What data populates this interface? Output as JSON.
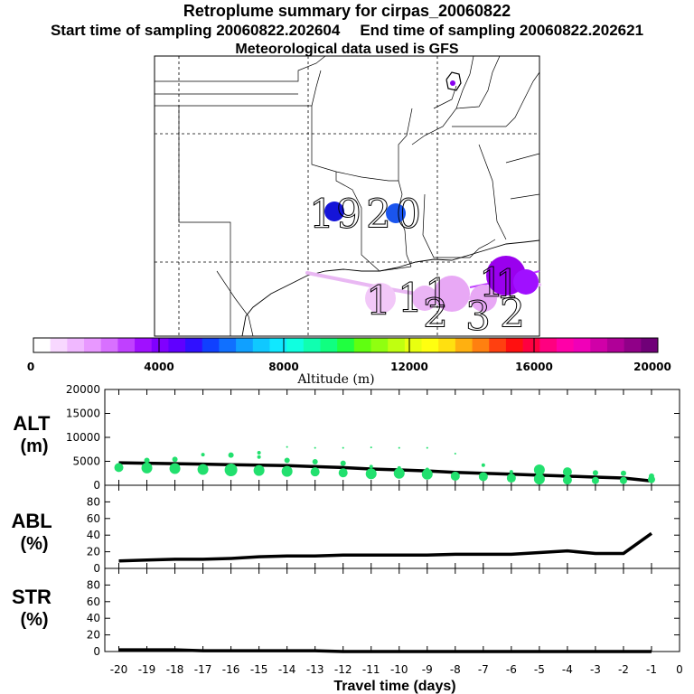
{
  "header": {
    "title": "Retroplume summary for cirpas_20060822",
    "start_label": "Start time of sampling 20060822.202604",
    "end_label": "End time of sampling 20060822.202621",
    "met_label": "Meteorological data used is GFS"
  },
  "colors": {
    "axis": "#000000",
    "marker": "#22e06e",
    "line": "#000000",
    "map_plume_light": "#f2c8f8",
    "map_plume_violet": "#8800ee",
    "map_blue": "#1a55ee",
    "map_darkblue": "#1414d8"
  },
  "map": {
    "cluster_labels": [
      "1",
      "9",
      "2",
      "0",
      "1",
      "1",
      "1",
      "1",
      "2",
      "3",
      "1",
      "2"
    ],
    "colorbar": {
      "label": "Altitude (m)",
      "tick_labels": [
        "0",
        "4000",
        "8000",
        "12000",
        "16000",
        "20000"
      ],
      "colors": [
        "#ffffff",
        "#f8d8ff",
        "#f0b8ff",
        "#e898ff",
        "#d870ff",
        "#c040ff",
        "#a010ff",
        "#8000ff",
        "#6000ff",
        "#3010ff",
        "#1040ff",
        "#1070ff",
        "#10a0ff",
        "#10c8ff",
        "#10e8ff",
        "#10ffe0",
        "#10ffb0",
        "#10ff80",
        "#20ff40",
        "#60ff10",
        "#90ff10",
        "#c0ff10",
        "#e8ff10",
        "#ffff10",
        "#ffe010",
        "#ffb010",
        "#ff8010",
        "#ff4010",
        "#ff1010",
        "#ff0040",
        "#ff0080",
        "#ff00a8",
        "#f000b8",
        "#d000a8",
        "#b00098",
        "#900088",
        "#700078"
      ]
    }
  },
  "chart_data": [
    {
      "type": "scatter",
      "panel": "ALT",
      "ylabel": "ALT (m)",
      "x": [
        -20,
        -19,
        -18,
        -17,
        -16,
        -15,
        -14,
        -13,
        -12,
        -11,
        -10,
        -9,
        -8,
        -7,
        -6,
        -5,
        -4,
        -3,
        -2,
        -1
      ],
      "ylim": [
        0,
        20000
      ],
      "yticks": [
        0,
        5000,
        10000,
        15000,
        20000
      ],
      "ytick_labels": [
        "0",
        "5000",
        "10000",
        "15000",
        "20000"
      ],
      "series": [
        {
          "name": "mean altitude",
          "kind": "line",
          "values": [
            4700,
            4600,
            4500,
            4400,
            4300,
            4200,
            4100,
            3900,
            3700,
            3400,
            3200,
            3000,
            2700,
            2500,
            2300,
            2100,
            1900,
            1700,
            1500,
            900
          ]
        },
        {
          "name": "cluster altitude",
          "kind": "markers",
          "points": [
            [
              -20,
              3700,
              5
            ],
            [
              -19,
              3600,
              6
            ],
            [
              -19,
              5200,
              3
            ],
            [
              -18,
              3500,
              6
            ],
            [
              -18,
              5400,
              3
            ],
            [
              -17,
              3300,
              6
            ],
            [
              -17,
              6400,
              2
            ],
            [
              -16,
              3200,
              7
            ],
            [
              -16,
              6300,
              3
            ],
            [
              -15,
              3100,
              6
            ],
            [
              -15,
              5900,
              2
            ],
            [
              -15,
              6800,
              2
            ],
            [
              -14,
              2900,
              6
            ],
            [
              -14,
              5200,
              3
            ],
            [
              -14,
              8000,
              1
            ],
            [
              -13,
              2800,
              5
            ],
            [
              -13,
              4900,
              3
            ],
            [
              -13,
              7800,
              1
            ],
            [
              -12,
              2600,
              5
            ],
            [
              -12,
              4600,
              3
            ],
            [
              -12,
              7800,
              1
            ],
            [
              -11,
              2400,
              6
            ],
            [
              -11,
              3900,
              2
            ],
            [
              -11,
              7900,
              1
            ],
            [
              -10,
              2500,
              6
            ],
            [
              -10,
              3600,
              2
            ],
            [
              -10,
              7800,
              1
            ],
            [
              -9,
              2300,
              6
            ],
            [
              -9,
              3300,
              2
            ],
            [
              -9,
              7800,
              1
            ],
            [
              -8,
              1900,
              5
            ],
            [
              -8,
              6600,
              1
            ],
            [
              -7,
              1800,
              5
            ],
            [
              -7,
              4200,
              2
            ],
            [
              -6,
              1500,
              5
            ],
            [
              -6,
              2800,
              2
            ],
            [
              -5,
              1300,
              6
            ],
            [
              -5,
              3200,
              6
            ],
            [
              -4,
              1100,
              5
            ],
            [
              -4,
              2800,
              5
            ],
            [
              -3,
              1000,
              4
            ],
            [
              -3,
              2600,
              3
            ],
            [
              -2,
              1000,
              4
            ],
            [
              -2,
              2500,
              3
            ],
            [
              -1,
              1200,
              4
            ],
            [
              -1,
              1900,
              3
            ]
          ]
        }
      ]
    },
    {
      "type": "line",
      "panel": "ABL",
      "ylabel": "ABL (%)",
      "x": [
        -20,
        -19,
        -18,
        -17,
        -16,
        -15,
        -14,
        -13,
        -12,
        -11,
        -10,
        -9,
        -8,
        -7,
        -6,
        -5,
        -4,
        -3,
        -2,
        -1
      ],
      "ylim": [
        0,
        100
      ],
      "yticks": [
        0,
        20,
        40,
        60,
        80
      ],
      "ytick_labels": [
        "0",
        "20",
        "40",
        "60",
        "80"
      ],
      "series": [
        {
          "name": "ABL fraction",
          "values": [
            9,
            10,
            11,
            11,
            12,
            14,
            15,
            15,
            16,
            16,
            16,
            16,
            17,
            17,
            17,
            19,
            21,
            18,
            18,
            42
          ]
        }
      ]
    },
    {
      "type": "line",
      "panel": "STR",
      "ylabel": "STR (%)",
      "x": [
        -20,
        -19,
        -18,
        -17,
        -16,
        -15,
        -14,
        -13,
        -12,
        -11,
        -10,
        -9,
        -8,
        -7,
        -6,
        -5,
        -4,
        -3,
        -2,
        -1
      ],
      "xlabel": "Travel time (days)",
      "xlim": [
        -20.5,
        0
      ],
      "xticks": [
        -20,
        -19,
        -18,
        -17,
        -16,
        -15,
        -14,
        -13,
        -12,
        -11,
        -10,
        -9,
        -8,
        -7,
        -6,
        -5,
        -4,
        -3,
        -2,
        -1,
        0
      ],
      "xtick_labels": [
        "-20",
        "-19",
        "-18",
        "-17",
        "-16",
        "-15",
        "-14",
        "-13",
        "-12",
        "-11",
        "-10",
        "-9",
        "-8",
        "-7",
        "-6",
        "-5",
        "-4",
        "-3",
        "-2",
        "-1",
        "0"
      ],
      "ylim": [
        0,
        100
      ],
      "yticks": [
        0,
        20,
        40,
        60,
        80
      ],
      "ytick_labels": [
        "0",
        "20",
        "40",
        "60",
        "80"
      ],
      "series": [
        {
          "name": "stratospheric fraction",
          "values": [
            2,
            2,
            2,
            1,
            1,
            1,
            1,
            1,
            0,
            0,
            0,
            0,
            0,
            0,
            0,
            0,
            0,
            0,
            0,
            0
          ]
        }
      ]
    }
  ]
}
